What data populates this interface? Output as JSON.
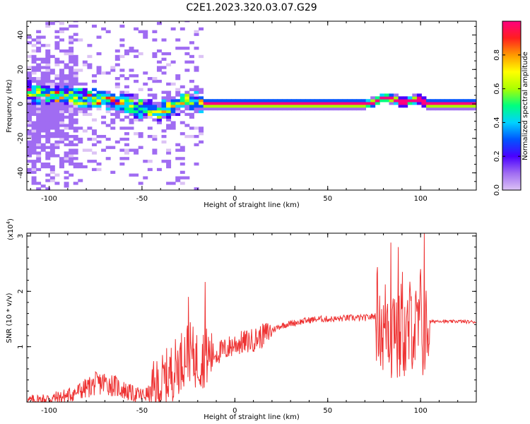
{
  "figure": {
    "title": "C2E1.2023.320.03.07.G29"
  },
  "chart_data": [
    {
      "type": "heatmap",
      "xlabel": "Height of straight line (km)",
      "ylabel": "Frequency (Hz)",
      "xlim": [
        -112,
        130
      ],
      "ylim": [
        -50,
        48
      ],
      "x_ticks": [
        -100,
        -50,
        0,
        50,
        100
      ],
      "y_ticks": [
        -40,
        -20,
        0,
        20,
        40
      ],
      "colorbar": {
        "label": "Normalized spectral amplitude",
        "range": [
          0,
          1
        ],
        "ticks": [
          0.0,
          0.2,
          0.4,
          0.6,
          0.8
        ],
        "colors": [
          "#dcc3f5",
          "#a06cf2",
          "#4a00ff",
          "#0055ff",
          "#00d2ff",
          "#00ff7f",
          "#aaff00",
          "#ffff00",
          "#ff9900",
          "#ff1f1f",
          "#ff007f"
        ]
      },
      "ridge": {
        "x": [
          -110,
          -100,
          -90,
          -80,
          -70,
          -60,
          -50,
          -45,
          -40,
          -35,
          -30,
          -25,
          -20,
          -18,
          -10,
          0,
          10,
          20,
          30,
          40,
          50,
          60,
          70,
          75,
          80,
          85,
          90,
          95,
          100,
          103,
          110,
          120,
          130
        ],
        "frequency": [
          7,
          6,
          5,
          3,
          2,
          0,
          -3,
          -4,
          -4,
          -2,
          0,
          2,
          2,
          0,
          0,
          0,
          0,
          0,
          0,
          0,
          0,
          0,
          0,
          1,
          4,
          3,
          1,
          2,
          3,
          0,
          0,
          0,
          0
        ]
      },
      "grid": false,
      "legend": "colorbar-right"
    },
    {
      "type": "line",
      "xlabel": "Height of straight line (km)",
      "ylabel": "SNR (10 * v/v)",
      "y_scale_label": "(x10",
      "y_scale_exponent": "4",
      "y_scale_suffix": ")",
      "xlim": [
        -112,
        130
      ],
      "ylim": [
        0,
        3.05
      ],
      "x_ticks": [
        -100,
        -50,
        0,
        50,
        100
      ],
      "y_ticks": [
        1,
        2,
        3
      ],
      "series": [
        {
          "color": "#ee3333",
          "x": [
            -112,
            -105,
            -100,
            -95,
            -90,
            -85,
            -80,
            -75,
            -70,
            -65,
            -60,
            -55,
            -50,
            -45,
            -40,
            -35,
            -30,
            -27,
            -25,
            -22,
            -20,
            -17,
            -15,
            -10,
            -5,
            0,
            5,
            10,
            15,
            20,
            25,
            30,
            35,
            40,
            45,
            50,
            55,
            60,
            65,
            70,
            75,
            78,
            80,
            82,
            84,
            86,
            88,
            90,
            92,
            95,
            98,
            100,
            102,
            104,
            106,
            110,
            115,
            120,
            125,
            130
          ],
          "y": [
            0.02,
            0.04,
            0.06,
            0.08,
            0.12,
            0.18,
            0.25,
            0.33,
            0.35,
            0.3,
            0.22,
            0.15,
            0.12,
            0.16,
            0.3,
            0.5,
            0.7,
            0.85,
            0.95,
            0.8,
            0.75,
            0.8,
            0.82,
            0.88,
            0.95,
            1.05,
            1.08,
            1.12,
            1.2,
            1.3,
            1.38,
            1.42,
            1.45,
            1.48,
            1.5,
            1.5,
            1.5,
            1.52,
            1.52,
            1.52,
            1.55,
            1.6,
            1.2,
            1.6,
            1.1,
            1.7,
            0.9,
            1.6,
            1.0,
            1.5,
            1.2,
            1.6,
            1.0,
            1.45,
            1.45,
            1.47,
            1.45,
            1.46,
            1.45,
            1.45
          ],
          "spikes": [
            {
              "x": -25,
              "y": 1.9
            },
            {
              "x": -16,
              "y": 2.17
            },
            {
              "x": 78,
              "y": 1.92
            },
            {
              "x": 84,
              "y": 2.88
            },
            {
              "x": 88,
              "y": 2.8
            },
            {
              "x": 102,
              "y": 3.05
            }
          ]
        }
      ],
      "grid": false
    }
  ]
}
